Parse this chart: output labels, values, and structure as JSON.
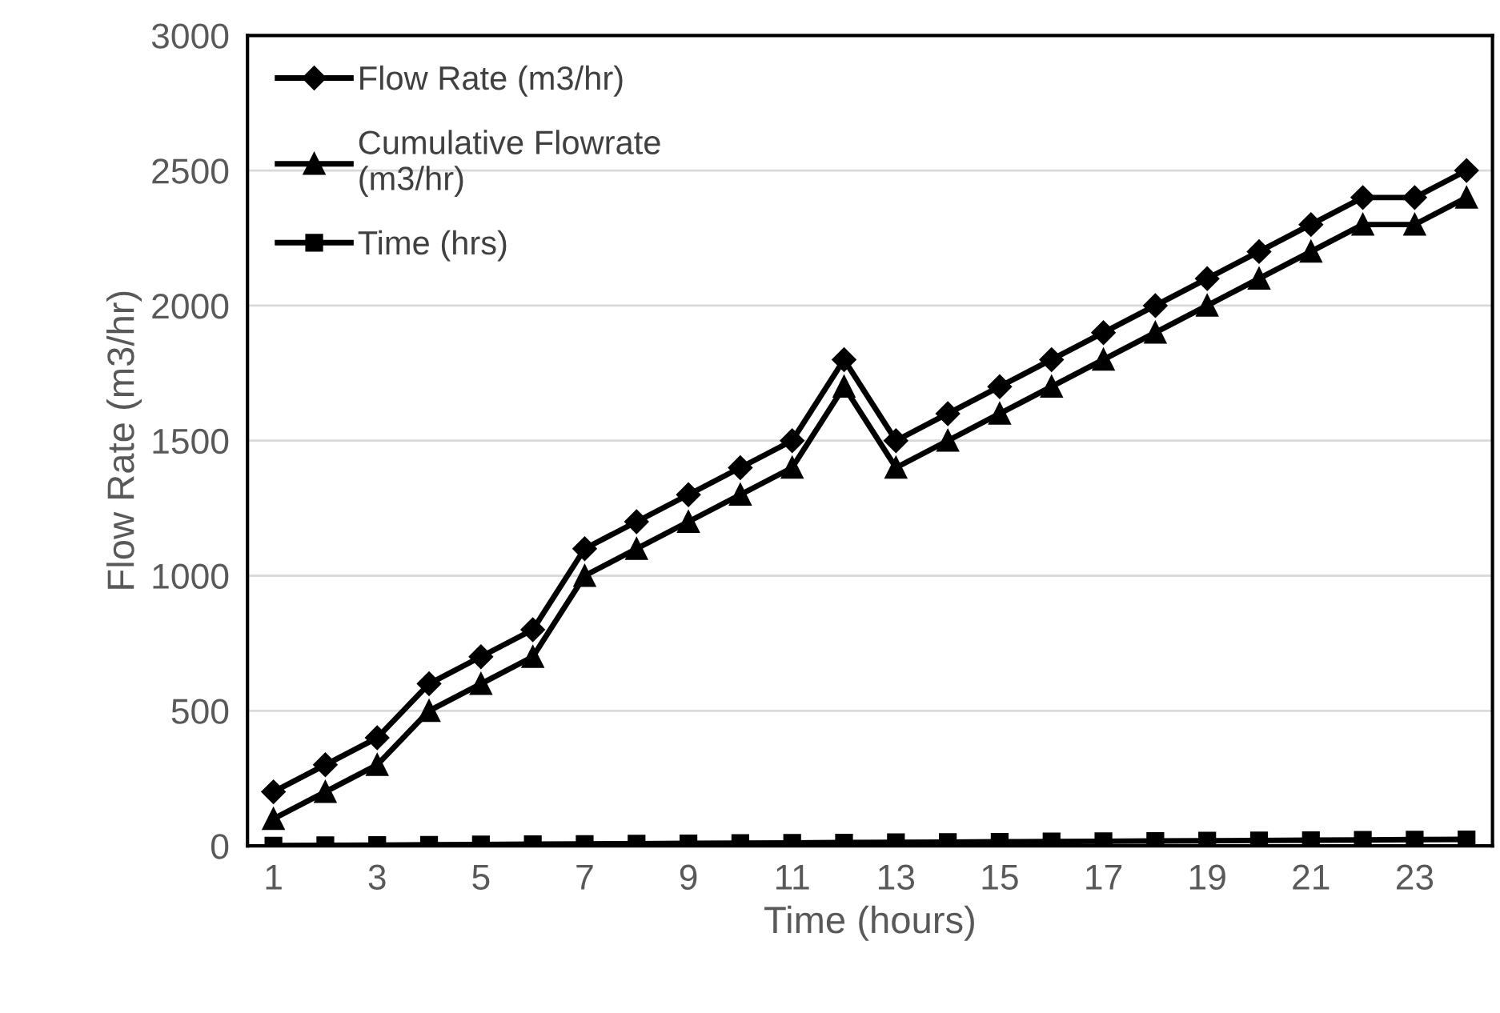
{
  "chart_data": {
    "type": "line",
    "xlabel": "Time (hours)",
    "ylabel": "Flow Rate (m3/hr)",
    "x": [
      1,
      2,
      3,
      4,
      5,
      6,
      7,
      8,
      9,
      10,
      11,
      12,
      13,
      14,
      15,
      16,
      17,
      18,
      19,
      20,
      21,
      22,
      23,
      24
    ],
    "xlim": [
      0.5,
      24.5
    ],
    "xticks": [
      1,
      3,
      5,
      7,
      9,
      11,
      13,
      15,
      17,
      19,
      21,
      23
    ],
    "ylim": [
      0,
      3000
    ],
    "yticks": [
      0,
      500,
      1000,
      1500,
      2000,
      2500,
      3000
    ],
    "grid": "y",
    "legend": "top left",
    "line_style": "solid",
    "series": [
      {
        "name": "Flow Rate (m3/hr)",
        "color": "#000000",
        "marker": "diamond",
        "values": [
          200,
          300,
          400,
          600,
          700,
          800,
          1100,
          1200,
          1300,
          1400,
          1500,
          1800,
          1500,
          1600,
          1700,
          1800,
          1900,
          2000,
          2100,
          2200,
          2300,
          2400,
          2400,
          2500
        ]
      },
      {
        "name": "Cumulative Flowrate\n(m3/hr)",
        "color": "#000000",
        "marker": "triangle",
        "values": [
          100,
          200,
          300,
          500,
          600,
          700,
          1000,
          1100,
          1200,
          1300,
          1400,
          1700,
          1400,
          1500,
          1600,
          1700,
          1800,
          1900,
          2000,
          2100,
          2200,
          2300,
          2300,
          2400
        ]
      },
      {
        "name": "Time (hrs)",
        "color": "#000000",
        "marker": "square",
        "values": [
          1,
          2,
          3,
          4,
          5,
          6,
          7,
          8,
          9,
          10,
          11,
          12,
          13,
          14,
          15,
          16,
          17,
          18,
          19,
          20,
          21,
          22,
          23,
          24
        ]
      }
    ]
  }
}
